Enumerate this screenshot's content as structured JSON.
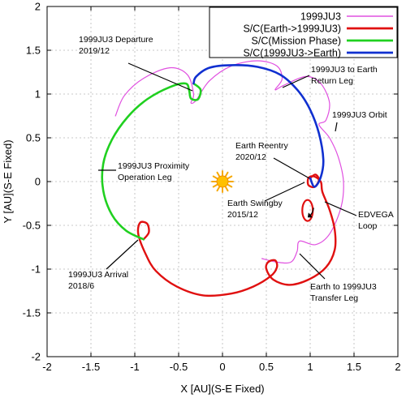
{
  "chart_data": {
    "type": "line",
    "xlabel": "X [AU](S-E Fixed)",
    "ylabel": "Y [AU](S-E Fixed)",
    "xlim": [
      -2,
      2
    ],
    "ylim": [
      -2,
      2
    ],
    "xticks": [
      -2,
      -1.5,
      -1,
      -0.5,
      0,
      0.5,
      1,
      1.5,
      2
    ],
    "yticks": [
      -2,
      -1.5,
      -1,
      -0.5,
      0,
      0.5,
      1,
      1.5,
      2
    ],
    "xtick_labels": [
      "-2",
      "-1.5",
      "-1",
      "-0.5",
      "0",
      "0.5",
      "1",
      "1.5",
      "2"
    ],
    "ytick_labels": [
      "-2",
      "-1.5",
      "-1",
      "-0.5",
      "0",
      "0.5",
      "1",
      "1.5",
      "2"
    ],
    "grid": true,
    "legend_position": "top-right",
    "series": [
      {
        "name": "1999JU3",
        "color": "#e050e0",
        "points": [
          [
            -1.22,
            0.75
          ],
          [
            -1.12,
            0.98
          ],
          [
            -0.9,
            1.18
          ],
          [
            -0.6,
            1.3
          ],
          [
            -0.4,
            1.22
          ],
          [
            -0.33,
            1.0
          ],
          [
            -0.36,
            0.9
          ],
          [
            -0.3,
            0.93
          ],
          [
            -0.15,
            1.15
          ],
          [
            0.1,
            1.32
          ],
          [
            0.4,
            1.38
          ],
          [
            0.62,
            1.32
          ],
          [
            0.68,
            1.17
          ],
          [
            0.6,
            1.05
          ],
          [
            0.7,
            1.1
          ],
          [
            0.95,
            1.2
          ],
          [
            1.12,
            1.12
          ],
          [
            1.22,
            0.9
          ],
          [
            1.18,
            0.7
          ],
          [
            1.1,
            0.65
          ],
          [
            1.22,
            0.5
          ],
          [
            1.32,
            0.28
          ],
          [
            1.38,
            0.0
          ],
          [
            1.35,
            -0.3
          ],
          [
            1.22,
            -0.6
          ],
          [
            1.06,
            -0.72
          ],
          [
            0.88,
            -0.68
          ],
          [
            0.85,
            -0.8
          ],
          [
            0.78,
            -0.92
          ],
          [
            0.62,
            -0.92
          ],
          [
            0.45,
            -0.88
          ]
        ]
      },
      {
        "name": "S/C(Earth->1999JU3)",
        "color": "#e01010",
        "points": [
          [
            1.0,
            0.04
          ],
          [
            1.06,
            0.08
          ],
          [
            1.1,
            0.02
          ],
          [
            1.05,
            -0.06
          ],
          [
            0.98,
            -0.04
          ],
          [
            0.98,
            0.04
          ],
          [
            1.04,
            0.06
          ],
          [
            1.12,
            0.0
          ],
          [
            1.14,
            -0.12
          ],
          [
            1.22,
            -0.32
          ],
          [
            1.28,
            -0.55
          ],
          [
            1.28,
            -0.78
          ],
          [
            1.18,
            -0.98
          ],
          [
            0.98,
            -1.12
          ],
          [
            0.76,
            -1.18
          ],
          [
            0.58,
            -1.12
          ],
          [
            0.5,
            -1.0
          ],
          [
            0.52,
            -0.92
          ],
          [
            0.6,
            -0.9
          ],
          [
            0.62,
            -0.98
          ],
          [
            0.55,
            -1.08
          ],
          [
            0.35,
            -1.2
          ],
          [
            0.1,
            -1.28
          ],
          [
            -0.22,
            -1.3
          ],
          [
            -0.52,
            -1.2
          ],
          [
            -0.76,
            -1.02
          ],
          [
            -0.88,
            -0.82
          ],
          [
            -0.96,
            -0.6
          ],
          [
            -0.94,
            -0.47
          ],
          [
            -0.86,
            -0.48
          ],
          [
            -0.84,
            -0.58
          ],
          [
            -0.9,
            -0.66
          ]
        ]
      },
      {
        "name": "S/C(Mission Phase)",
        "color": "#20d020",
        "points": [
          [
            -0.9,
            -0.66
          ],
          [
            -1.1,
            -0.56
          ],
          [
            -1.26,
            -0.38
          ],
          [
            -1.36,
            -0.1
          ],
          [
            -1.36,
            0.2
          ],
          [
            -1.26,
            0.48
          ],
          [
            -1.08,
            0.74
          ],
          [
            -0.86,
            0.94
          ],
          [
            -0.6,
            1.08
          ],
          [
            -0.42,
            1.12
          ],
          [
            -0.38,
            1.04
          ],
          [
            -0.36,
            0.95
          ],
          [
            -0.28,
            0.94
          ],
          [
            -0.25,
            1.05
          ],
          [
            -0.33,
            1.12
          ]
        ]
      },
      {
        "name": "S/C(1999JU3->Earth)",
        "color": "#1030d0",
        "points": [
          [
            -0.33,
            1.12
          ],
          [
            -0.3,
            1.2
          ],
          [
            -0.15,
            1.3
          ],
          [
            0.1,
            1.33
          ],
          [
            0.4,
            1.31
          ],
          [
            0.66,
            1.22
          ],
          [
            0.86,
            1.04
          ],
          [
            1.0,
            0.82
          ],
          [
            1.1,
            0.55
          ],
          [
            1.15,
            0.25
          ],
          [
            1.12,
            0.05
          ],
          [
            1.05,
            -0.06
          ],
          [
            1.0,
            0.04
          ]
        ]
      }
    ],
    "extra_loops": [
      {
        "name": "EDVEGA loop",
        "color": "#e01010",
        "center": [
          0.97,
          -0.33
        ],
        "radii": [
          0.06,
          0.12
        ]
      }
    ],
    "sun_position": [
      0.0,
      0.0
    ],
    "annotations": [
      {
        "id": "departure",
        "lines": [
          "1999JU3 Departure",
          "2019/12"
        ]
      },
      {
        "id": "return-leg",
        "lines": [
          "1999JU3 to Earth",
          "Return Leg"
        ]
      },
      {
        "id": "orbit",
        "lines": [
          "1999JU3 Orbit"
        ]
      },
      {
        "id": "proximity",
        "lines": [
          "1999JU3 Proximity",
          "Operation Leg"
        ]
      },
      {
        "id": "reentry",
        "lines": [
          "Earth Reentry",
          "2020/12"
        ]
      },
      {
        "id": "swingby",
        "lines": [
          "Earth Swingby",
          "2015/12"
        ]
      },
      {
        "id": "edvega",
        "lines": [
          "EDVEGA",
          "Loop"
        ]
      },
      {
        "id": "arrival",
        "lines": [
          "1999JU3 Arrival",
          "2018/6"
        ]
      },
      {
        "id": "transfer",
        "lines": [
          "Earth to 1999JU3",
          "Transfer Leg"
        ]
      }
    ]
  }
}
